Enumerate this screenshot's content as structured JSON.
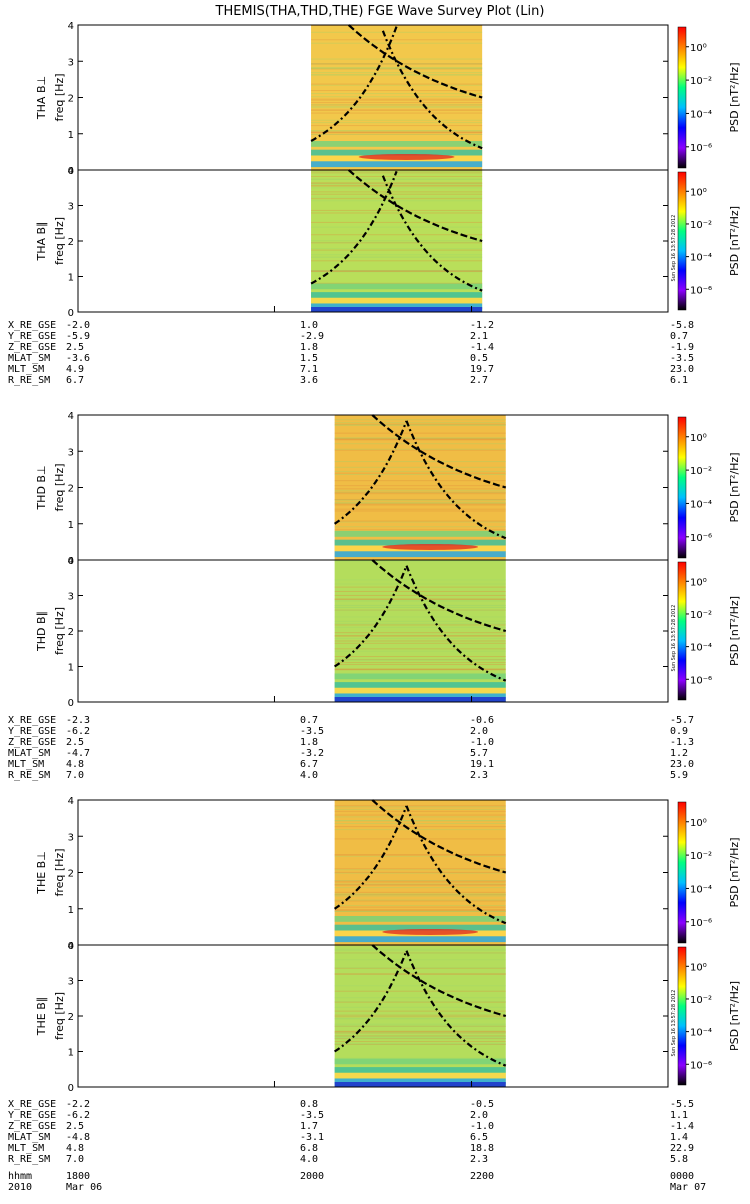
{
  "chart_data": {
    "type": "heatmap",
    "title": "THEMIS(THA,THD,THE) FGE Wave Survey Plot (Lin)",
    "freq_axis": {
      "label": "freq [Hz]",
      "ylim": [
        0,
        4
      ],
      "ticks": [
        "0",
        "1",
        "2",
        "3",
        "4"
      ]
    },
    "colorbar": {
      "label": "PSD [nT²/Hz]",
      "ticks": [
        "10⁰",
        "10⁻²",
        "10⁻⁴",
        "10⁻⁶"
      ],
      "colors": [
        "#000000",
        "#8b00ff",
        "#0000ff",
        "#00bfff",
        "#00ff80",
        "#ffff00",
        "#ff8000",
        "#ff0000"
      ]
    },
    "stamp": "Sun Sep 16 13:57:28 2012",
    "probes": [
      {
        "id": "THA",
        "panels": [
          {
            "label": "THA B⊥",
            "data_start": 0.395,
            "data_end": 0.685,
            "background": "#f2c84b"
          },
          {
            "label": "THA B∥",
            "data_start": 0.395,
            "data_end": 0.685,
            "background": "#b9df5a"
          }
        ],
        "ephemeris": [
          {
            "name": "X_RE_GSE",
            "values": [
              "-2.0",
              "1.0",
              "-1.2",
              "-5.8"
            ]
          },
          {
            "name": "Y_RE_GSE",
            "values": [
              "-5.9",
              "-2.9",
              "2.1",
              "0.7"
            ]
          },
          {
            "name": "Z_RE_GSE",
            "values": [
              "2.5",
              "1.8",
              "-1.4",
              "-1.9"
            ]
          },
          {
            "name": "MLAT_SM",
            "values": [
              "-3.6",
              "1.5",
              "0.5",
              "-3.5"
            ]
          },
          {
            "name": "MLT_SM",
            "values": [
              "4.9",
              "7.1",
              "19.7",
              "23.0"
            ]
          },
          {
            "name": "R_RE_SM",
            "values": [
              "6.7",
              "3.6",
              "2.7",
              "6.1"
            ]
          }
        ]
      },
      {
        "id": "THD",
        "panels": [
          {
            "label": "THD B⊥",
            "data_start": 0.435,
            "data_end": 0.725,
            "background": "#f0bd45"
          },
          {
            "label": "THD B∥",
            "data_start": 0.435,
            "data_end": 0.725,
            "background": "#b4dd5c"
          }
        ],
        "ephemeris": [
          {
            "name": "X_RE_GSE",
            "values": [
              "-2.3",
              "0.7",
              "-0.6",
              "-5.7"
            ]
          },
          {
            "name": "Y_RE_GSE",
            "values": [
              "-6.2",
              "-3.5",
              "2.0",
              "0.9"
            ]
          },
          {
            "name": "Z_RE_GSE",
            "values": [
              "2.5",
              "1.8",
              "-1.0",
              "-1.3"
            ]
          },
          {
            "name": "MLAT_SM",
            "values": [
              "-4.7",
              "-3.2",
              "5.7",
              "1.2"
            ]
          },
          {
            "name": "MLT_SM",
            "values": [
              "4.8",
              "6.7",
              "19.1",
              "23.0"
            ]
          },
          {
            "name": "R_RE_SM",
            "values": [
              "7.0",
              "4.0",
              "2.3",
              "5.9"
            ]
          }
        ]
      },
      {
        "id": "THE",
        "panels": [
          {
            "label": "THE B⊥",
            "data_start": 0.435,
            "data_end": 0.725,
            "background": "#f0bd45"
          },
          {
            "label": "THE B∥",
            "data_start": 0.435,
            "data_end": 0.725,
            "background": "#b4dd5c"
          }
        ],
        "ephemeris": [
          {
            "name": "X_RE_GSE",
            "values": [
              "-2.2",
              "0.8",
              "-0.5",
              "-5.5"
            ]
          },
          {
            "name": "Y_RE_GSE",
            "values": [
              "-6.2",
              "-3.5",
              "2.0",
              "1.1"
            ]
          },
          {
            "name": "Z_RE_GSE",
            "values": [
              "2.5",
              "1.7",
              "-1.0",
              "-1.4"
            ]
          },
          {
            "name": "MLAT_SM",
            "values": [
              "-4.8",
              "-3.1",
              "6.5",
              "1.4"
            ]
          },
          {
            "name": "MLT_SM",
            "values": [
              "4.8",
              "6.8",
              "18.8",
              "22.9"
            ]
          },
          {
            "name": "R_RE_SM",
            "values": [
              "7.0",
              "4.0",
              "2.3",
              "5.8"
            ]
          }
        ]
      }
    ],
    "time_axis": {
      "rows": [
        {
          "name": "hhmm",
          "values": [
            "1800",
            "2000",
            "2200",
            "0000"
          ]
        },
        {
          "name": "2010",
          "values": [
            "Mar 06",
            "",
            "",
            "Mar 07"
          ]
        }
      ]
    }
  }
}
